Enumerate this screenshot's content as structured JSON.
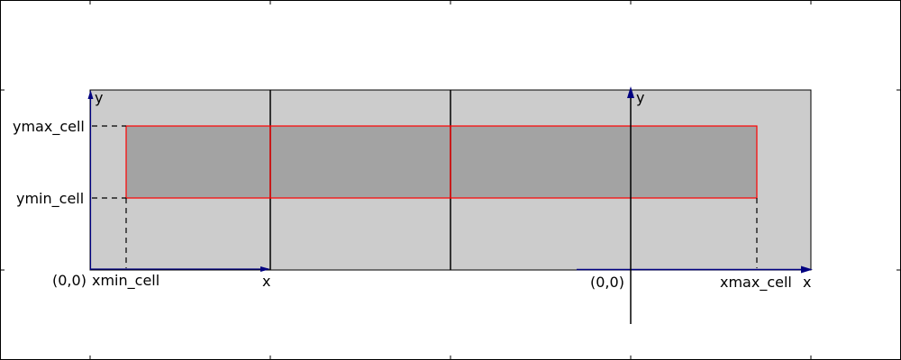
{
  "labels": {
    "ymax_cell": "ymax_cell",
    "ymin_cell": "ymin_cell",
    "origin_left": "(0,0)",
    "xmin_cell": "xmin_cell",
    "x_axis_left": "x",
    "y_axis_left": "y",
    "origin_right": "(0,0)",
    "xmax_cell": "xmax_cell",
    "x_axis_right": "x",
    "y_axis_right": "y"
  },
  "colors": {
    "grid_cell_fill": "#cccccc",
    "bbox_fill": "#a3a3a3",
    "bbox_stroke": "#ff0000",
    "axis_arrow": "#000080",
    "line": "#000000"
  }
}
